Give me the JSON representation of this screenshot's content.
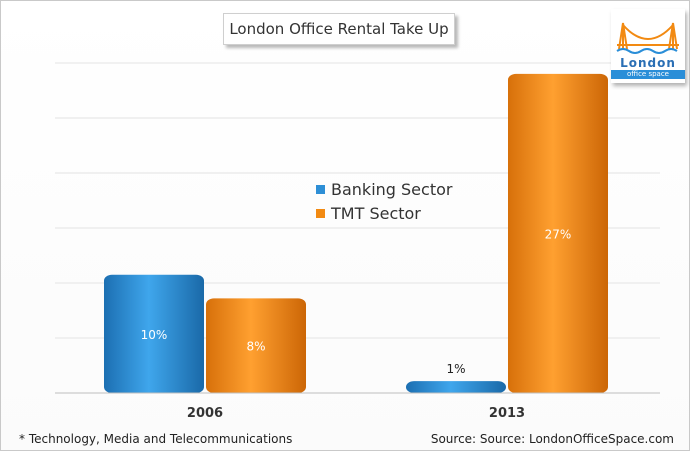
{
  "chart_data": {
    "type": "bar",
    "title": "London Office Rental Take Up",
    "categories": [
      "2006",
      "2013"
    ],
    "series": [
      {
        "name": "Banking Sector",
        "values": [
          10,
          1
        ],
        "labels": [
          "10%",
          "1%"
        ],
        "color": "#2e8fd6"
      },
      {
        "name": "TMT Sector",
        "values": [
          8,
          27
        ],
        "labels": [
          "8%",
          "27%"
        ],
        "color": "#f28a12"
      }
    ],
    "ylim": [
      0,
      28
    ],
    "grid": true,
    "legend_position": "center"
  },
  "logo": {
    "name": "London",
    "tagline": "office space"
  },
  "footnote": "* Technology, Media and Telecommunications",
  "source": "Source: Source: LondonOfficeSpace.com"
}
